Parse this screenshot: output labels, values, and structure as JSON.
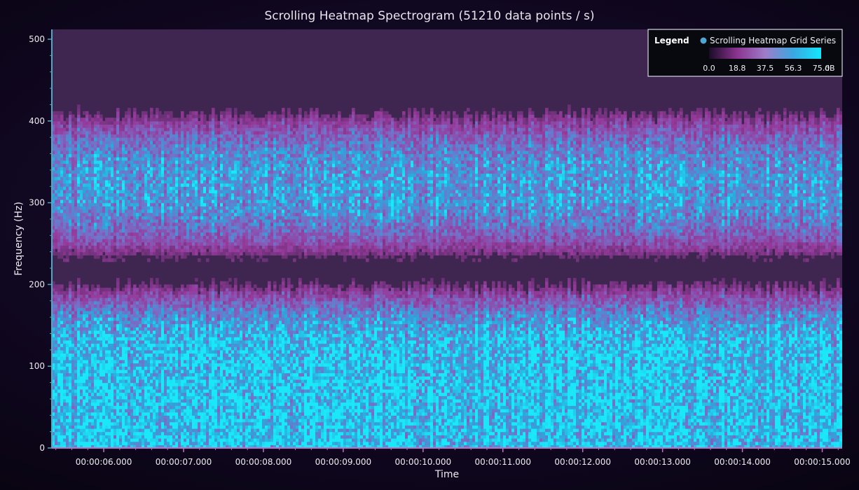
{
  "chart_data": {
    "type": "heatmap",
    "title": "Scrolling Heatmap Spectrogram (51210 data points / s)",
    "xlabel": "Time",
    "ylabel": "Frequency (Hz)",
    "x_tick_labels": [
      "00:00:06.000",
      "00:00:07.000",
      "00:00:08.000",
      "00:00:09.000",
      "00:00:10.000",
      "00:00:11.000",
      "00:00:12.000",
      "00:00:13.000",
      "00:00:14.000",
      "00:00:15.000"
    ],
    "x_tick_values_s": [
      6,
      7,
      8,
      9,
      10,
      11,
      12,
      13,
      14,
      15
    ],
    "xlim_s": [
      5.35,
      15.25
    ],
    "y_ticks": [
      0,
      100,
      200,
      300,
      400,
      500
    ],
    "y_tick_labels": [
      "0",
      "100",
      "200",
      "300",
      "400",
      "500"
    ],
    "ylim": [
      0,
      512
    ],
    "bands_hz": [
      {
        "from": 0,
        "to": 205,
        "peak_db": 75
      },
      {
        "from": 225,
        "to": 415,
        "peak_db": 60
      }
    ],
    "grid": false,
    "legend": {
      "placement": "top-right",
      "heading": "Legend",
      "series_name": "Scrolling Heatmap Grid Series",
      "unit": "dB",
      "scale_labels": [
        "0.0",
        "18.8",
        "37.5",
        "56.3",
        "75.0"
      ],
      "scale_values": [
        0,
        18.8,
        37.5,
        56.3,
        75.0
      ],
      "series_color": "#4fa6d6"
    },
    "colors": {
      "low": "#3e2650",
      "mid": "#a340a8",
      "high": "#28c8e8",
      "peak": "#1ae8f8",
      "axis_x": "#c070c8",
      "axis_y": "#4ea8c8"
    }
  }
}
